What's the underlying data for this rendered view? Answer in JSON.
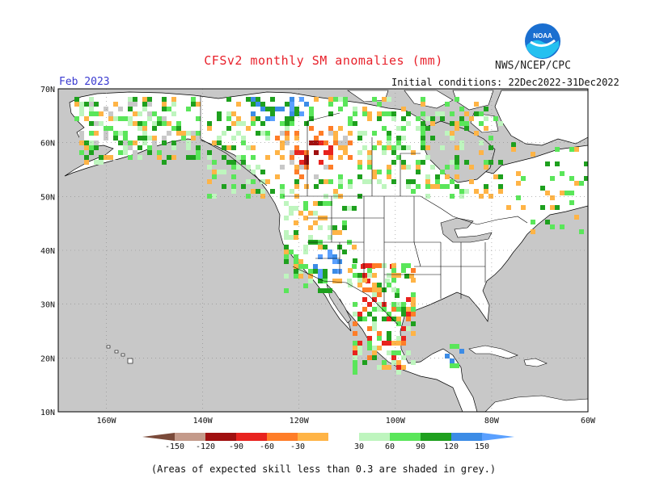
{
  "title": "CFSv2 monthly SM anomalies (mm)",
  "agency": "NWS/NCEP/CPC",
  "logo_text": "NOAA",
  "valid_month": "Feb 2023",
  "initial_conditions": "Initial conditions: 22Dec2022-31Dec2022",
  "footnote": "(Areas of expected skill less than 0.3 are shaded in grey.)",
  "colors": {
    "ocean": "#c8c8c8",
    "land": "#ffffff",
    "low_skill": "#c8c8c8",
    "bins": [
      "#7a4a3a",
      "#c49a8a",
      "#a01010",
      "#e8231e",
      "#ff7d28",
      "#ffb446",
      "#ffffff",
      "#bef5be",
      "#5ae65a",
      "#1ea01e",
      "#3c8ce6",
      "#5aa0ff"
    ]
  },
  "lat_labels": [
    "70N",
    "60N",
    "50N",
    "40N",
    "30N",
    "20N",
    "10N"
  ],
  "lon_labels": [
    "160W",
    "140W",
    "120W",
    "100W",
    "80W",
    "60W"
  ],
  "colorbar_labels": [
    "-150",
    "-120",
    "-90",
    "-60",
    "-30",
    "30",
    "60",
    "90",
    "120",
    "150"
  ],
  "map": {
    "lon_range": [
      -170,
      -60
    ],
    "lat_range": [
      10,
      70
    ],
    "projection": "cylindrical equidistant",
    "grid": "dotted"
  }
}
